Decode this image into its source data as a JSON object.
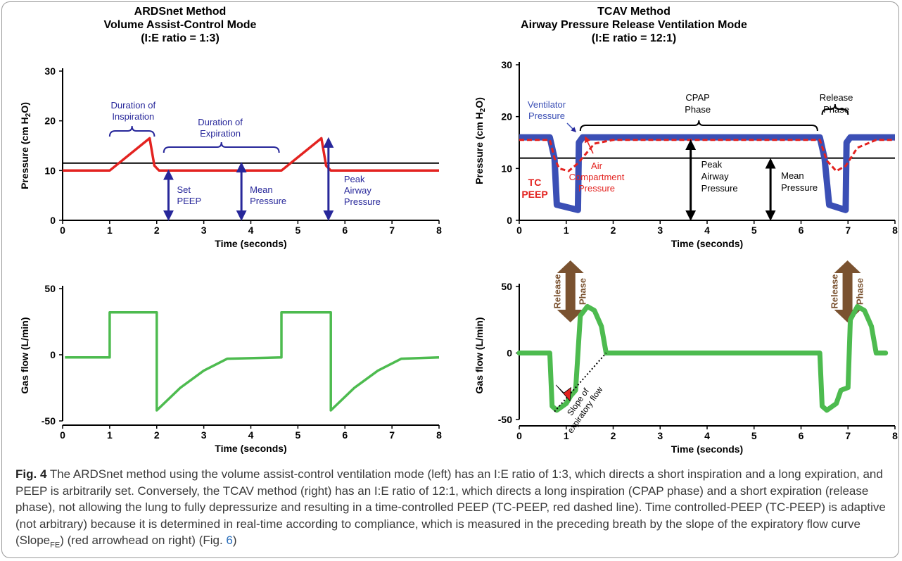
{
  "colors": {
    "red": "#e32320",
    "green": "#4dbb4f",
    "blue": "#3b4fb5",
    "navy": "#27279a",
    "brown": "#7a5230",
    "black": "#000000",
    "link": "#2a6ebb"
  },
  "left": {
    "title": [
      "ARDSnet Method",
      "Volume Assist-Control Mode",
      "(I:E ratio = 1:3)"
    ],
    "pressure_chart": {
      "ylabel_main": "Pressure (cm H",
      "ylabel_sub": "2",
      "ylabel_end": "O)",
      "xlabel": "Time (seconds)",
      "yticks": [
        "0",
        "10",
        "20",
        "30"
      ],
      "xticks": [
        "0",
        "1",
        "2",
        "3",
        "4",
        "5",
        "6",
        "7",
        "8"
      ],
      "annotations": {
        "inspiration": [
          "Duration of",
          "Inspiration"
        ],
        "expiration": [
          "Duration of",
          "Expiration"
        ],
        "set_peep": [
          "Set",
          "PEEP"
        ],
        "mean": [
          "Mean",
          "Pressure"
        ],
        "peak": [
          "Peak",
          "Airway",
          "Pressure"
        ]
      }
    },
    "flow_chart": {
      "ylabel": "Gas flow (L/min)",
      "xlabel": "Time (seconds)",
      "yticks": [
        "50",
        "0",
        "-50"
      ],
      "xticks": [
        "0",
        "1",
        "2",
        "3",
        "4",
        "5",
        "6",
        "7",
        "8"
      ]
    }
  },
  "right": {
    "title": [
      "TCAV Method",
      "Airway Pressure Release Ventilation Mode",
      "(I:E ratio = 12:1)"
    ],
    "pressure_chart": {
      "ylabel_main": "Pressure (cm H",
      "ylabel_sub": "2",
      "ylabel_end": "O)",
      "xlabel": "Time (seconds)",
      "yticks": [
        "0",
        "10",
        "20",
        "30"
      ],
      "xticks": [
        "0",
        "1",
        "2",
        "3",
        "4",
        "5",
        "6",
        "7",
        "8"
      ],
      "annotations": {
        "ventilator": [
          "Ventilator",
          "Pressure"
        ],
        "cpap": [
          "CPAP",
          "Phase"
        ],
        "release": [
          "Release",
          "Phase"
        ],
        "tc_peep": [
          "TC",
          "PEEP"
        ],
        "air": [
          "Air",
          "Compartment",
          "Pressure"
        ],
        "peak": [
          "Peak",
          "Airway",
          "Pressure"
        ],
        "mean": [
          "Mean",
          "Pressure"
        ]
      }
    },
    "release_arrow": [
      "Release",
      "Phase"
    ],
    "flow_chart": {
      "ylabel": "Gas flow (L/min)",
      "xlabel": "Time (seconds)",
      "yticks": [
        "50",
        "0",
        "-50"
      ],
      "xticks": [
        "0",
        "1",
        "2",
        "3",
        "4",
        "5",
        "6",
        "7",
        "8"
      ],
      "slope_label": [
        "Slope of",
        "expiratory flow"
      ]
    }
  },
  "chart_data": [
    {
      "type": "line",
      "title": "ARDSnet Method Volume Assist-Control Mode (I:E ratio = 1:3)",
      "xlabel": "Time (seconds)",
      "ylabel": "Pressure (cm H2O)",
      "xlim": [
        0,
        8
      ],
      "ylim": [
        0,
        30
      ],
      "series": [
        {
          "name": "",
          "x": [
            0,
            1,
            1.85,
            1.95,
            2.05,
            4.65,
            5.5,
            5.6,
            5.7,
            8
          ],
          "y": [
            10,
            10,
            16.5,
            11,
            10,
            10,
            16.5,
            11,
            10,
            10
          ]
        }
      ],
      "mean_line": 11.5
    },
    {
      "type": "line",
      "xlabel": "Time (seconds)",
      "ylabel": "Gas flow (L/min)",
      "xlim": [
        0,
        8
      ],
      "ylim": [
        -50,
        50
      ],
      "series": [
        {
          "name": "",
          "x": [
            0.05,
            1,
            1,
            2,
            2,
            2.5,
            3,
            3.5,
            4.65,
            4.65,
            5.7,
            5.7,
            6.2,
            6.7,
            7.2,
            8
          ],
          "y": [
            -2,
            -2,
            32,
            32,
            -42,
            -25,
            -12,
            -3,
            -2,
            32,
            32,
            -42,
            -25,
            -12,
            -3,
            -2
          ]
        }
      ]
    },
    {
      "type": "line",
      "title": "TCAV Method Airway Pressure Release Ventilation Mode (I:E ratio = 12:1)",
      "xlabel": "Time (seconds)",
      "ylabel": "Pressure (cm H2O)",
      "xlim": [
        0,
        8
      ],
      "ylim": [
        0,
        30
      ],
      "series": [
        {
          "name": "Ventilator Pressure",
          "x": [
            0,
            0.65,
            0.75,
            0.8,
            1.25,
            1.27,
            1.35,
            6.4,
            6.5,
            6.6,
            6.95,
            6.97,
            7.05,
            8
          ],
          "y": [
            16,
            16,
            12,
            3,
            2,
            15,
            16,
            16,
            12,
            3,
            2,
            15,
            16,
            16
          ]
        },
        {
          "name": "Air Compartment Pressure",
          "x": [
            0,
            0.65,
            0.75,
            0.85,
            1.05,
            1.25,
            1.6,
            2.0,
            6.4,
            6.55,
            6.75,
            6.95,
            7.2,
            7.6,
            8
          ],
          "y": [
            15.5,
            15.5,
            12,
            10,
            9.5,
            11,
            14.8,
            15.5,
            15.5,
            11.5,
            9.5,
            10.5,
            14,
            15.5,
            15.5
          ]
        }
      ],
      "mean_line": 12
    },
    {
      "type": "line",
      "xlabel": "Time (seconds)",
      "ylabel": "Gas flow (L/min)",
      "xlim": [
        0,
        8
      ],
      "ylim": [
        -50,
        50
      ],
      "series": [
        {
          "name": "",
          "x": [
            0,
            0.65,
            0.7,
            0.8,
            1.0,
            1.1,
            1.2,
            1.3,
            1.45,
            1.6,
            1.75,
            1.85,
            6.4,
            6.45,
            6.55,
            6.75,
            6.85,
            7.0,
            7.05,
            7.2,
            7.35,
            7.5,
            7.6,
            7.8
          ],
          "y": [
            0,
            0,
            -40,
            -43,
            -38,
            -32,
            -28,
            28,
            35,
            32,
            20,
            0,
            0,
            -40,
            -43,
            -38,
            -28,
            -26,
            25,
            35,
            32,
            20,
            0,
            0
          ]
        }
      ]
    }
  ],
  "caption": {
    "label": "Fig. 4",
    "text": " The ARDSnet method using the volume assist-control ventilation mode (left) has an I:E ratio of 1:3, which directs a short inspiration and a long expiration, and PEEP is arbitrarily set. Conversely, the TCAV method (right) has an I:E ratio of 12:1, which directs a long inspiration (CPAP phase) and a short expiration (release phase), not allowing the lung to fully depressurize and resulting in a time-controlled PEEP (TC-PEEP, red dashed line). Time controlled-PEEP (TC-PEEP) is adaptive (not arbitrary) because it is determined in real-time according to compliance, which is measured in the preceding breath by the slope of the expiratory flow curve (Slope",
    "sub": "FE",
    "text2": ") (red arrowhead on right) (Fig. ",
    "ref": "6",
    "text3": ")"
  }
}
